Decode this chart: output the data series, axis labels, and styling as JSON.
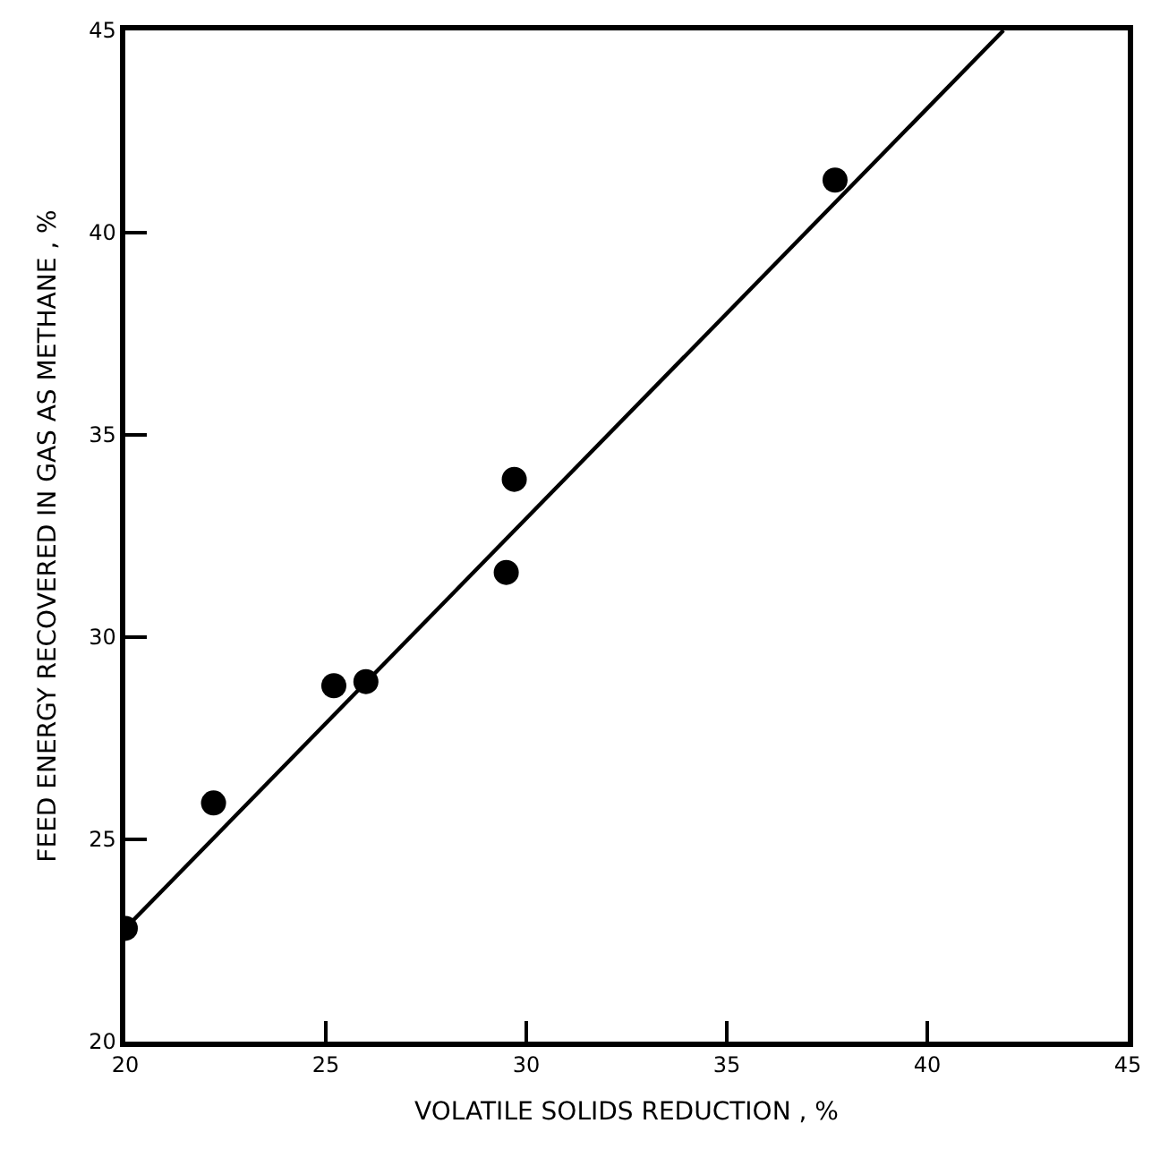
{
  "chart_data": {
    "type": "scatter",
    "xlabel": "VOLATILE SOLIDS REDUCTION , %",
    "ylabel": "FEED ENERGY RECOVERED IN GAS AS METHANE , %",
    "series": [
      {
        "color": "#000000",
        "marker": "circle",
        "x": [
          20.0,
          22.2,
          25.2,
          26.0,
          29.5,
          29.7,
          37.7
        ],
        "values": [
          22.8,
          25.9,
          28.8,
          28.9,
          31.6,
          33.9,
          41.3
        ]
      },
      {
        "type": "line",
        "color": "#000000",
        "marker": "none",
        "line_style": "solid",
        "x": [
          20.0,
          41.9
        ],
        "values": [
          22.8,
          45.0
        ]
      }
    ],
    "xlim": [
      20,
      45
    ],
    "ylim": [
      20,
      45
    ],
    "xticks": [
      20,
      25,
      30,
      35,
      40,
      45
    ],
    "yticks": [
      20,
      25,
      30,
      35,
      40,
      45
    ]
  }
}
